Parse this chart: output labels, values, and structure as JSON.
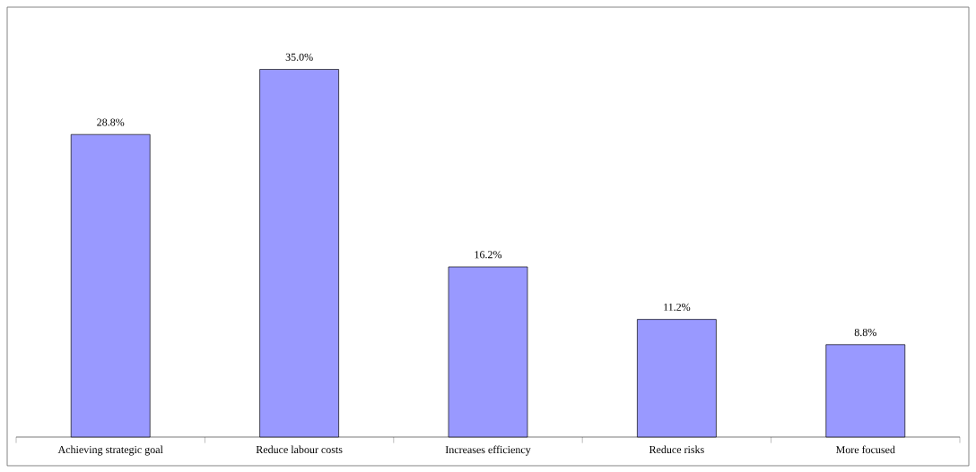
{
  "chart_data": {
    "type": "bar",
    "categories": [
      "Achieving strategic goal",
      "Reduce labour costs",
      "Increases efficiency",
      "Reduce risks",
      "More focused"
    ],
    "values": [
      28.8,
      35.0,
      16.2,
      11.2,
      8.8
    ],
    "value_labels": [
      "28.8%",
      "35.0%",
      "16.2%",
      "11.2%",
      "8.8%"
    ],
    "color": "#9999ff"
  }
}
